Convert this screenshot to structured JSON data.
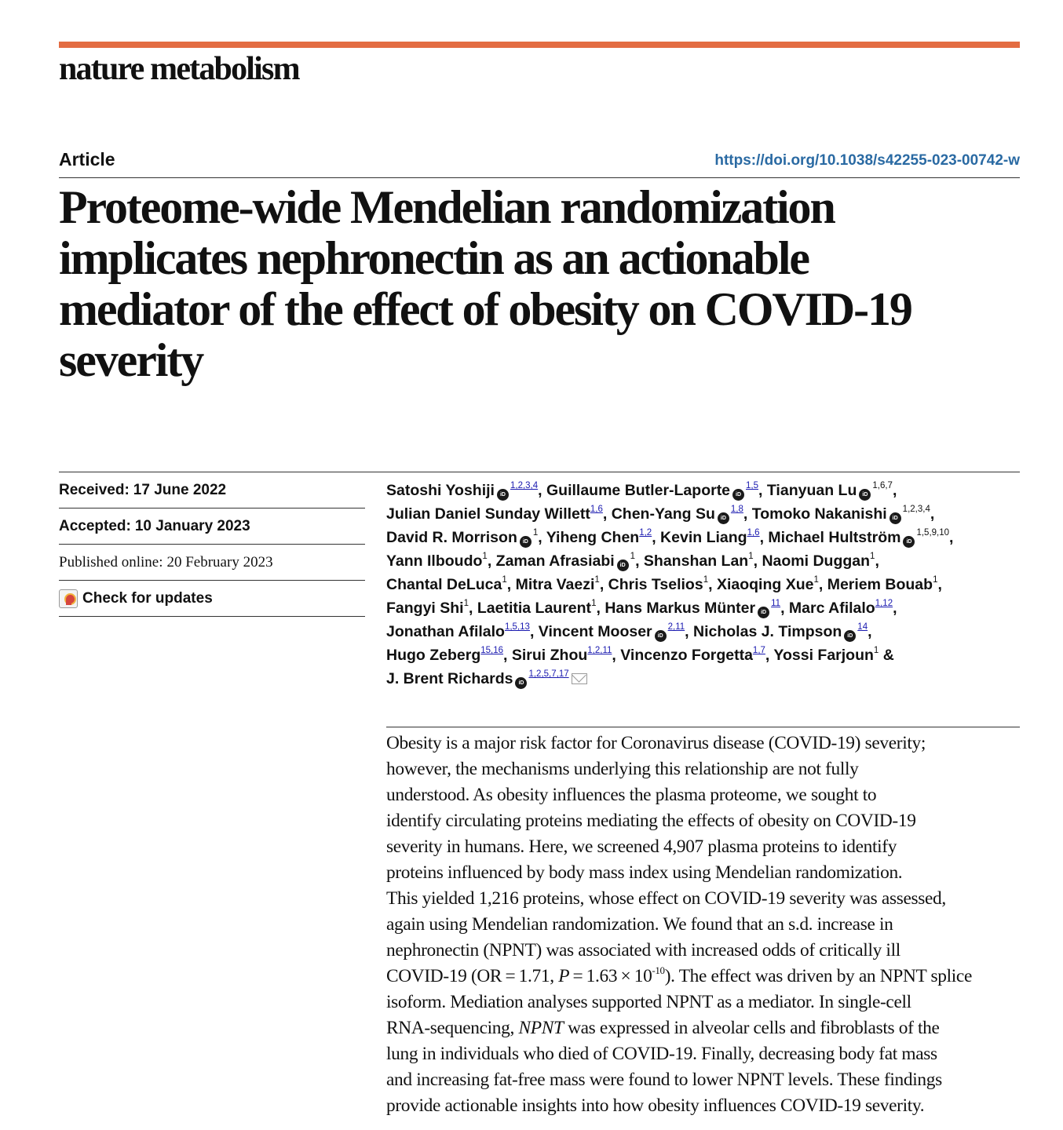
{
  "journal": "nature metabolism",
  "accent_color": "#e36c42",
  "link_color": "#2a6aa3",
  "article_type": "Article",
  "doi": "https://doi.org/10.1038/s42255-023-00742-w",
  "title_lines": [
    "Proteome-wide Mendelian randomization",
    "implicates nephronectin as an actionable",
    "mediator of the effect of obesity on COVID-19",
    "severity"
  ],
  "received_label": "Received:",
  "received": "17 June 2022",
  "accepted_label": "Accepted:",
  "accepted": "10 January 2023",
  "published_label": "Published online:",
  "published": "20 February 2023",
  "check_updates": "Check for updates",
  "orcid_icon": "iD",
  "authors": [
    {
      "n": "Satoshi Yoshiji",
      "o": true,
      "s": "1,2,3,4",
      "l": true
    },
    {
      "n": "Guillaume Butler-Laporte",
      "o": true,
      "s": "1,5",
      "l": true
    },
    {
      "n": "Tianyuan Lu",
      "o": true,
      "s": "1,6,7",
      "l": false
    },
    {
      "n": "Julian Daniel Sunday Willett",
      "o": false,
      "s": "1,6",
      "l": true
    },
    {
      "n": "Chen-Yang Su",
      "o": true,
      "s": "1,8",
      "l": true
    },
    {
      "n": "Tomoko Nakanishi",
      "o": true,
      "s": "1,2,3,4",
      "l": false
    },
    {
      "n": "David R. Morrison",
      "o": true,
      "s": "1",
      "l": false
    },
    {
      "n": "Yiheng Chen",
      "o": false,
      "s": "1,2",
      "l": true
    },
    {
      "n": "Kevin Liang",
      "o": false,
      "s": "1,6",
      "l": true
    },
    {
      "n": "Michael Hultström",
      "o": true,
      "s": "1,5,9,10",
      "l": false
    },
    {
      "n": "Yann Ilboudo",
      "o": false,
      "s": "1",
      "l": false
    },
    {
      "n": "Zaman Afrasiabi",
      "o": true,
      "s": "1",
      "l": false
    },
    {
      "n": "Shanshan Lan",
      "o": false,
      "s": "1",
      "l": false
    },
    {
      "n": "Naomi Duggan",
      "o": false,
      "s": "1",
      "l": false
    },
    {
      "n": "Chantal DeLuca",
      "o": false,
      "s": "1",
      "l": false
    },
    {
      "n": "Mitra Vaezi",
      "o": false,
      "s": "1",
      "l": false
    },
    {
      "n": "Chris Tselios",
      "o": false,
      "s": "1",
      "l": false
    },
    {
      "n": "Xiaoqing Xue",
      "o": false,
      "s": "1",
      "l": false
    },
    {
      "n": "Meriem Bouab",
      "o": false,
      "s": "1",
      "l": false
    },
    {
      "n": "Fangyi Shi",
      "o": false,
      "s": "1",
      "l": false
    },
    {
      "n": "Laetitia Laurent",
      "o": false,
      "s": "1",
      "l": false
    },
    {
      "n": "Hans Markus Münter",
      "o": true,
      "s": "11",
      "l": true
    },
    {
      "n": "Marc Afilalo",
      "o": false,
      "s": "1,12",
      "l": true
    },
    {
      "n": "Jonathan Afilalo",
      "o": false,
      "s": "1,5,13",
      "l": true
    },
    {
      "n": "Vincent Mooser",
      "o": true,
      "s": "2,11",
      "l": true
    },
    {
      "n": "Nicholas J. Timpson",
      "o": true,
      "s": "14",
      "l": true
    },
    {
      "n": "Hugo Zeberg",
      "o": false,
      "s": "15,16",
      "l": true
    },
    {
      "n": "Sirui Zhou",
      "o": false,
      "s": "1,2,11",
      "l": true
    },
    {
      "n": "Vincenzo Forgetta",
      "o": false,
      "s": "1,7",
      "l": true
    },
    {
      "n": "Yossi Farjoun",
      "o": false,
      "s": "1",
      "l": false
    },
    {
      "n": "J. Brent Richards",
      "o": true,
      "s": "1,2,5,7,17",
      "l": true
    }
  ],
  "author_sep": ", ",
  "author_and": " & ",
  "abstract_lines": [
    {
      "t": "Obesity is a major risk factor for Coronavirus disease (COVID-19) severity;"
    },
    {
      "t": "however, the mechanisms underlying this relationship are not fully"
    },
    {
      "t": "understood. As obesity influences the plasma proteome, we sought to"
    },
    {
      "t": "identify circulating proteins mediating the effects of obesity on COVID-19"
    },
    {
      "t": "severity in humans. Here, we screened 4,907 plasma proteins to identify"
    },
    {
      "t": "proteins influenced by body mass index using Mendelian randomization."
    },
    {
      "t": "This yielded 1,216 proteins, whose effect on COVID-19 severity was assessed,"
    },
    {
      "t": "again using Mendelian randomization. We found that an s.d. increase in"
    },
    {
      "t": "nephronectin (NPNT) was associated with increased odds of critically ill"
    },
    {
      "a": "COVID-19 (OR = 1.71, ",
      "i": "P",
      "b": " = 1.63 × 10",
      "sup": "-10",
      "c": "). The effect was driven by an NPNT splice"
    },
    {
      "t": "isoform. Mediation analyses supported NPNT as a mediator. In single-cell"
    },
    {
      "a": "RNA-sequencing, ",
      "i": "NPNT",
      "b": " was expressed in alveolar cells and fibroblasts of the"
    },
    {
      "t": "lung in individuals who died of COVID-19. Finally, decreasing body fat mass"
    },
    {
      "t": "and increasing fat-free mass were found to lower NPNT levels. These findings"
    },
    {
      "t": "provide actionable insights into how obesity influences COVID-19 severity."
    }
  ]
}
